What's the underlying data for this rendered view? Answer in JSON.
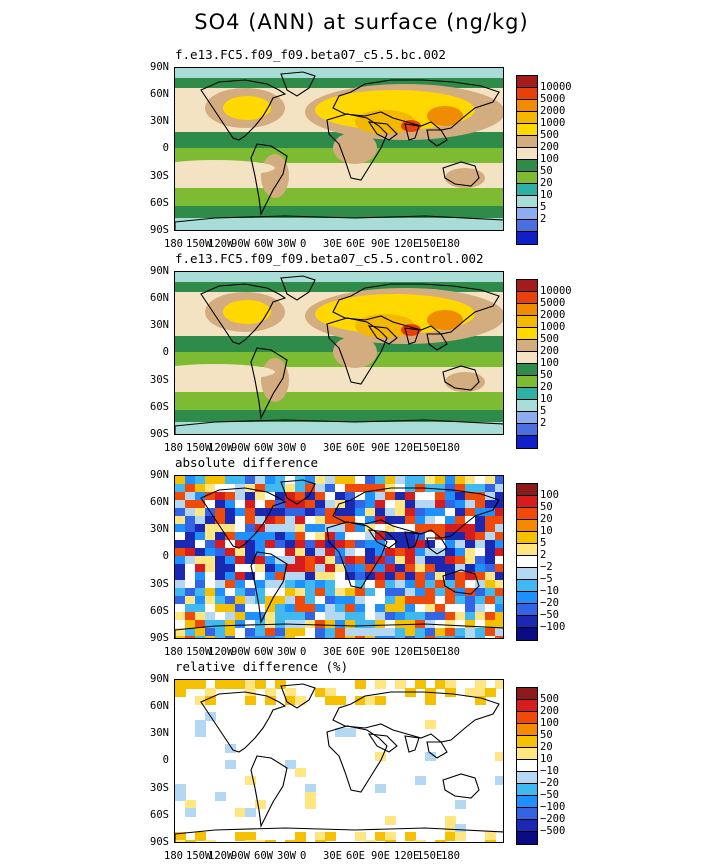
{
  "title": "SO4 (ANN) at surface (ng/kg)",
  "lat_labels": [
    "90N",
    "60N",
    "30N",
    "0",
    "30S",
    "60S",
    "90S"
  ],
  "lon_labels": [
    "180",
    "150W",
    "120W",
    "90W",
    "60W",
    "30W",
    "0",
    "30E",
    "60E",
    "90E",
    "120E",
    "150E",
    "180"
  ],
  "panels": [
    {
      "title": "f.e13.FC5.f09_f09.beta07_c5.5.bc.002",
      "kind": "abs",
      "legend": {
        "colors": [
          "#a51a1a",
          "#e8400c",
          "#f08c00",
          "#f5b800",
          "#ffd800",
          "#d3ad7f",
          "#f3e3c3",
          "#2e8b4a",
          "#7dbb32",
          "#2fb0a4",
          "#a8dcd6",
          "#8caef0",
          "#4a70e0",
          "#1020c8"
        ],
        "labels": [
          "10000",
          "5000",
          "2000",
          "1000",
          "500",
          "200",
          "100",
          "50",
          "20",
          "10",
          "5",
          "2"
        ]
      }
    },
    {
      "title": "f.e13.FC5.f09_f09.beta07_c5.5.control.002",
      "kind": "abs",
      "legend": {
        "colors": [
          "#a51a1a",
          "#e8400c",
          "#f08c00",
          "#f5b800",
          "#ffd800",
          "#d3ad7f",
          "#f3e3c3",
          "#2e8b4a",
          "#7dbb32",
          "#2fb0a4",
          "#a8dcd6",
          "#8caef0",
          "#4a70e0",
          "#1020c8"
        ],
        "labels": [
          "10000",
          "5000",
          "2000",
          "1000",
          "500",
          "200",
          "100",
          "50",
          "20",
          "10",
          "5",
          "2"
        ]
      }
    },
    {
      "title": "absolute difference",
      "kind": "diff",
      "legend": {
        "colors": [
          "#8b1a1a",
          "#d61c1c",
          "#f04a0a",
          "#f58a00",
          "#f5c000",
          "#ffe680",
          "#ffffff",
          "#b4d8f4",
          "#40b8f0",
          "#1e90ff",
          "#3264e6",
          "#1a28b4",
          "#0a0a82"
        ],
        "labels": [
          "100",
          "50",
          "20",
          "10",
          "5",
          "2",
          "−2",
          "−5",
          "−10",
          "−20",
          "−50",
          "−100"
        ]
      }
    },
    {
      "title": "relative difference (%)",
      "kind": "rel",
      "legend": {
        "colors": [
          "#8b1a1a",
          "#d61c1c",
          "#f04a0a",
          "#f58a00",
          "#f5c000",
          "#ffe680",
          "#ffffff",
          "#b4d8f4",
          "#40b8f0",
          "#1e90ff",
          "#3264e6",
          "#1a28b4",
          "#0a0a82"
        ],
        "labels": [
          "500",
          "200",
          "100",
          "50",
          "20",
          "10",
          "−10",
          "−20",
          "−50",
          "−100",
          "−200",
          "−500"
        ]
      }
    }
  ]
}
